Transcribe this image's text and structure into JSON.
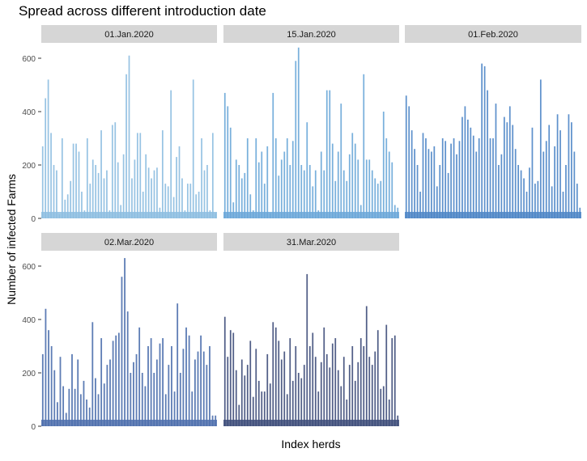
{
  "chart_data": {
    "type": "bar",
    "title": "Spread across different introduction date",
    "xlabel": "Index herds",
    "ylabel": "Number of infected Farms",
    "ylim": [
      0,
      640
    ],
    "yticks": [
      0,
      200,
      400,
      600
    ],
    "ytick_labels": [
      "0",
      "200",
      "400",
      "600"
    ],
    "grid": false,
    "legend": "none",
    "facets": [
      {
        "label": "01.Jan.2020",
        "color": "#8cbde0",
        "values": [
          270,
          450,
          520,
          320,
          200,
          180,
          15,
          300,
          70,
          90,
          140,
          280,
          280,
          250,
          100,
          30,
          300,
          130,
          220,
          200,
          170,
          330,
          150,
          180,
          30,
          350,
          360,
          210,
          50,
          240,
          540,
          610,
          150,
          220,
          320,
          320,
          100,
          240,
          190,
          150,
          180,
          190,
          40,
          330,
          130,
          120,
          480,
          80,
          230,
          270,
          150,
          30,
          130,
          130,
          520,
          90,
          100,
          300,
          180,
          200,
          30,
          320,
          20
        ]
      },
      {
        "label": "15.Jan.2020",
        "color": "#6aa7d8",
        "values": [
          470,
          420,
          340,
          60,
          220,
          200,
          150,
          170,
          300,
          90,
          30,
          300,
          210,
          250,
          130,
          270,
          20,
          470,
          300,
          160,
          220,
          250,
          300,
          200,
          290,
          590,
          640,
          200,
          180,
          360,
          200,
          120,
          180,
          30,
          250,
          180,
          480,
          480,
          280,
          140,
          250,
          430,
          180,
          140,
          240,
          320,
          280,
          220,
          50,
          540,
          220,
          220,
          180,
          150,
          130,
          140,
          400,
          300,
          250,
          210,
          50,
          40
        ]
      },
      {
        "label": "01.Feb.2020",
        "color": "#4c85c6",
        "values": [
          460,
          420,
          330,
          260,
          200,
          100,
          320,
          300,
          260,
          250,
          270,
          120,
          200,
          300,
          290,
          170,
          280,
          300,
          240,
          290,
          380,
          420,
          370,
          340,
          310,
          250,
          300,
          580,
          570,
          480,
          300,
          300,
          430,
          200,
          240,
          380,
          360,
          420,
          350,
          260,
          200,
          180,
          150,
          100,
          190,
          340,
          130,
          140,
          520,
          250,
          290,
          350,
          120,
          270,
          390,
          330,
          100,
          200,
          390,
          360,
          250,
          130,
          40
        ]
      },
      {
        "label": "02.Mar.2020",
        "color": "#4d6fad",
        "values": [
          270,
          440,
          360,
          300,
          210,
          90,
          260,
          150,
          50,
          140,
          270,
          140,
          250,
          120,
          170,
          100,
          70,
          390,
          180,
          120,
          330,
          160,
          230,
          250,
          320,
          340,
          350,
          560,
          630,
          430,
          200,
          240,
          270,
          370,
          200,
          150,
          300,
          330,
          200,
          250,
          310,
          330,
          120,
          230,
          300,
          130,
          460,
          200,
          290,
          370,
          340,
          130,
          250,
          280,
          340,
          280,
          230,
          300,
          40,
          40
        ]
      },
      {
        "label": "31.Mar.2020",
        "color": "#3e4d7a",
        "values": [
          410,
          260,
          360,
          350,
          210,
          80,
          250,
          190,
          230,
          320,
          110,
          290,
          170,
          130,
          130,
          270,
          160,
          390,
          370,
          320,
          250,
          280,
          120,
          330,
          170,
          300,
          200,
          180,
          230,
          570,
          300,
          350,
          260,
          130,
          240,
          370,
          270,
          220,
          310,
          330,
          210,
          150,
          260,
          100,
          230,
          300,
          170,
          240,
          330,
          300,
          450,
          260,
          230,
          280,
          360,
          140,
          150,
          380,
          100,
          330,
          340,
          40
        ]
      }
    ]
  }
}
